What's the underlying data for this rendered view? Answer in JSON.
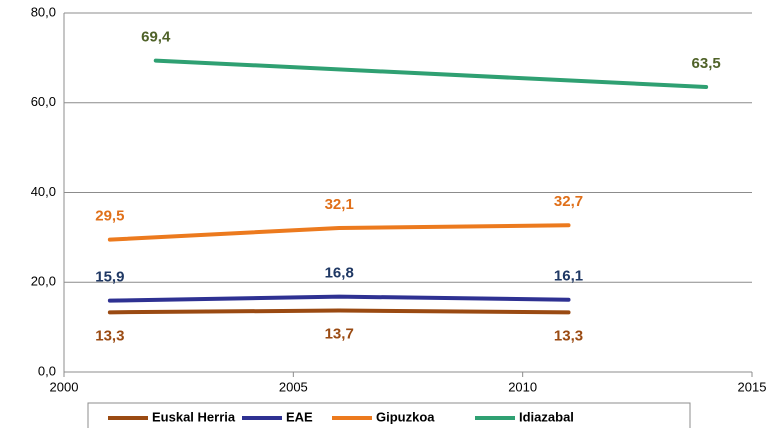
{
  "chart_data": {
    "type": "line",
    "xlim": [
      2000,
      2015
    ],
    "xticks": [
      2000,
      2005,
      2010,
      2015
    ],
    "ylim": [
      0,
      80
    ],
    "yticks": [
      {
        "value": 0,
        "label": "0,0"
      },
      {
        "value": 20,
        "label": "20,0"
      },
      {
        "value": 40,
        "label": "40,0"
      },
      {
        "value": 60,
        "label": "60,0"
      },
      {
        "value": 80,
        "label": "80,0"
      }
    ],
    "grid": true,
    "legend": "bottom",
    "series": [
      {
        "name": "Euskal Herria",
        "color": "#9a4a12",
        "label_color": "#9a4a12",
        "x": [
          2001,
          2006,
          2011
        ],
        "values": [
          13.3,
          13.7,
          13.3
        ],
        "value_labels": [
          "13,3",
          "13,7",
          "13,3"
        ]
      },
      {
        "name": "EAE",
        "color": "#2e3192",
        "label_color": "#1f3864",
        "x": [
          2001,
          2006,
          2011
        ],
        "values": [
          15.9,
          16.8,
          16.1
        ],
        "value_labels": [
          "15,9",
          "16,8",
          "16,1"
        ]
      },
      {
        "name": "Gipuzkoa",
        "color": "#ec7a1e",
        "label_color": "#e0701a",
        "x": [
          2001,
          2006,
          2011
        ],
        "values": [
          29.5,
          32.1,
          32.7
        ],
        "value_labels": [
          "29,5",
          "32,1",
          "32,7"
        ]
      },
      {
        "name": "Idiazabal",
        "color": "#2fa072",
        "label_color": "#4f6228",
        "x": [
          2002,
          2014
        ],
        "values": [
          69.4,
          63.5
        ],
        "value_labels": [
          "69,4",
          "63,5"
        ]
      }
    ]
  }
}
